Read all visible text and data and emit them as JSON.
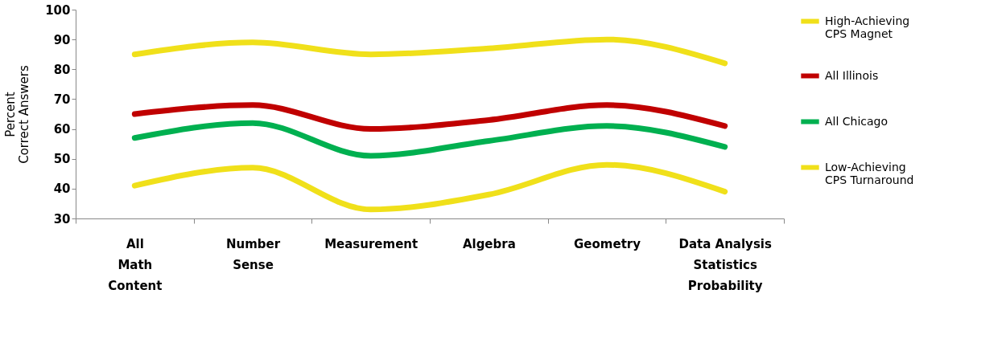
{
  "chart_data": {
    "type": "line",
    "ylabel": "Percent\nCorrect Answers",
    "categories": [
      "All\nMath\nContent",
      "Number\nSense",
      "Measurement",
      "Algebra",
      "Geometry",
      "Data Analysis\nStatistics\nProbability"
    ],
    "series": [
      {
        "name": "High-Achieving\nCPS Magnet",
        "color": "#f0e01a",
        "values": [
          85,
          89,
          85,
          87,
          90,
          82
        ]
      },
      {
        "name": "All Illinois",
        "color": "#c00000",
        "values": [
          65,
          68,
          60,
          63,
          68,
          61
        ]
      },
      {
        "name": "All Chicago",
        "color": "#00b050",
        "values": [
          57,
          62,
          51,
          56,
          61,
          54
        ]
      },
      {
        "name": "Low-Achieving\nCPS Turnaround",
        "color": "#f0e01a",
        "values": [
          41,
          47,
          33,
          38,
          48,
          39
        ]
      }
    ],
    "ylim": [
      30,
      100
    ],
    "yticks": [
      30,
      40,
      50,
      60,
      70,
      80,
      90,
      100
    ],
    "grid": false,
    "legend": "right",
    "marker": "none",
    "line_style": "solid"
  }
}
